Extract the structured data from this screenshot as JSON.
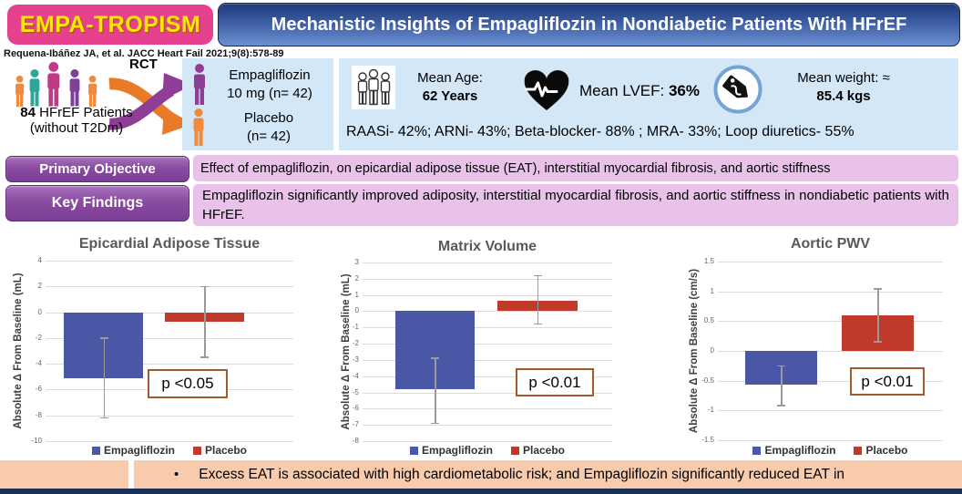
{
  "header": {
    "badge": "EMPA-TROPISM",
    "title": "Mechanistic Insights of Empagliflozin in Nondiabetic Patients With HFrEF",
    "citation": "Requena-Ibáñez JA, et al. JACC Heart Fail 2021;9(8):578-89"
  },
  "cohort": {
    "rct_label": "RCT",
    "count": "84",
    "count_rest": " HFrEF Patients",
    "subtitle": "(without T2Dm)"
  },
  "arms": [
    {
      "line1": "Empagliflozin",
      "line2": "10 mg (n= 42)",
      "color": "#8e3e97"
    },
    {
      "line1": "Placebo",
      "line2": "(n= 42)",
      "color": "#f08a3c"
    }
  ],
  "stats": {
    "age": {
      "label": "Mean Age:",
      "value": "62 Years"
    },
    "lvef": {
      "label": "Mean LVEF: ",
      "value": "36%"
    },
    "weight": {
      "label": "Mean weight: ≈",
      "value": "85.4 kgs"
    },
    "meds": "RAASi- 42%; ARNi- 43%; Beta-blocker- 88% ; MRA- 33%; Loop diuretics- 55%"
  },
  "objective": {
    "label": "Primary Objective",
    "text": "Effect of empagliflozin, on epicardial adipose tissue (EAT), interstitial myocardial fibrosis, and aortic stiffness"
  },
  "findings": {
    "label": "Key Findings",
    "text": "Empagliflozin significantly improved adiposity, interstitial myocardial fibrosis, and aortic stiffness in nondiabetic patients with HFrEF."
  },
  "chart_data": [
    {
      "type": "bar",
      "title": "Epicardial Adipose Tissue",
      "ylabel": "Absolute Δ From Baseline (mL)",
      "ylim": [
        -10,
        4
      ],
      "ytick_step": 2,
      "grid": true,
      "legend_position": "bottom",
      "series": [
        {
          "name": "Empagliflozin",
          "value": -5.1,
          "error_low": -8.2,
          "error_high": -2.0,
          "color": "#4a57a6"
        },
        {
          "name": "Placebo",
          "value": -0.75,
          "error_low": -3.5,
          "error_high": 2.0,
          "color": "#bf3a2b"
        }
      ],
      "p_label": "p <0.05"
    },
    {
      "type": "bar",
      "title": "Matrix Volume",
      "ylabel": "Absolute Δ From Baseline (mL)",
      "ylim": [
        -8,
        3
      ],
      "ytick_step": 1,
      "grid": true,
      "legend_position": "bottom",
      "series": [
        {
          "name": "Empagliflozin",
          "value": -4.8,
          "error_low": -6.9,
          "error_high": -2.9,
          "color": "#4a57a6"
        },
        {
          "name": "Placebo",
          "value": 0.65,
          "error_low": -0.8,
          "error_high": 2.2,
          "color": "#bf3a2b"
        }
      ],
      "p_label": "p <0.01"
    },
    {
      "type": "bar",
      "title": "Aortic PWV",
      "ylabel": "Absolute Δ From Baseline (cm/s)",
      "ylim": [
        -1.5,
        1.5
      ],
      "ytick_step": 0.5,
      "grid": true,
      "legend_position": "bottom",
      "series": [
        {
          "name": "Empagliflozin",
          "value": -0.57,
          "error_low": -0.92,
          "error_high": -0.25,
          "color": "#4a57a6"
        },
        {
          "name": "Placebo",
          "value": 0.6,
          "error_low": 0.15,
          "error_high": 1.04,
          "color": "#bf3a2b"
        }
      ],
      "p_label": "p <0.01"
    }
  ],
  "bottom": {
    "bullet_char": "•",
    "text": "Excess EAT is associated with high cardiometabolic risk; and Empagliflozin significantly reduced EAT in"
  },
  "colors": {
    "badge_pink": "#e6418f",
    "badge_text_yellow": "#ffe800",
    "title_blue": "#3c5da4",
    "panel_light_blue": "#d3e7f7",
    "button_purple": "#8a4ba0",
    "text_box_lavender": "#e9c2ea",
    "bar_blue": "#4a57a6",
    "bar_red": "#bf3a2b",
    "bottom_peach": "#f8cbad",
    "navy_strip": "#1b3159"
  }
}
